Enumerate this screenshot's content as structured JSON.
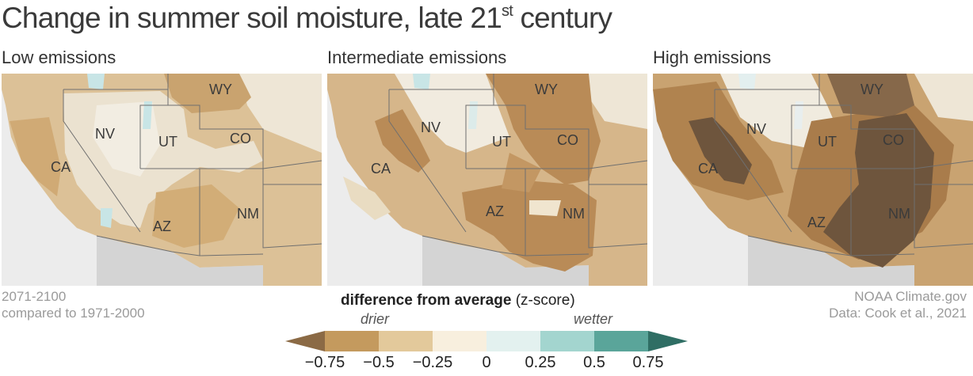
{
  "title": {
    "main": "Change in summer soil moisture, late 21",
    "sup": "st",
    "tail": " century"
  },
  "panels": [
    {
      "label": "Low emissions"
    },
    {
      "label": "Intermediate emissions"
    },
    {
      "label": "High emissions"
    }
  ],
  "state_labels": [
    "WY",
    "NV",
    "UT",
    "CO",
    "CA",
    "AZ",
    "NM"
  ],
  "footer": {
    "period": "2071-2100",
    "baseline": "compared to 1971-2000",
    "source": "NOAA Climate.gov",
    "data": "Data: Cook et al., 2021"
  },
  "legend": {
    "title_bold": "difference from average",
    "title_unit": " (z-score)",
    "drier": "drier",
    "wetter": "wetter",
    "ticks": [
      "−0.75",
      "−0.5",
      "−0.25",
      "0",
      "0.25",
      "0.5",
      "0.75"
    ],
    "colors": [
      "#8b6a45",
      "#c49a5e",
      "#e3c99b",
      "#f8efde",
      "#e3f1ef",
      "#a3d5cf",
      "#5aa59a",
      "#2f6e64"
    ]
  }
}
